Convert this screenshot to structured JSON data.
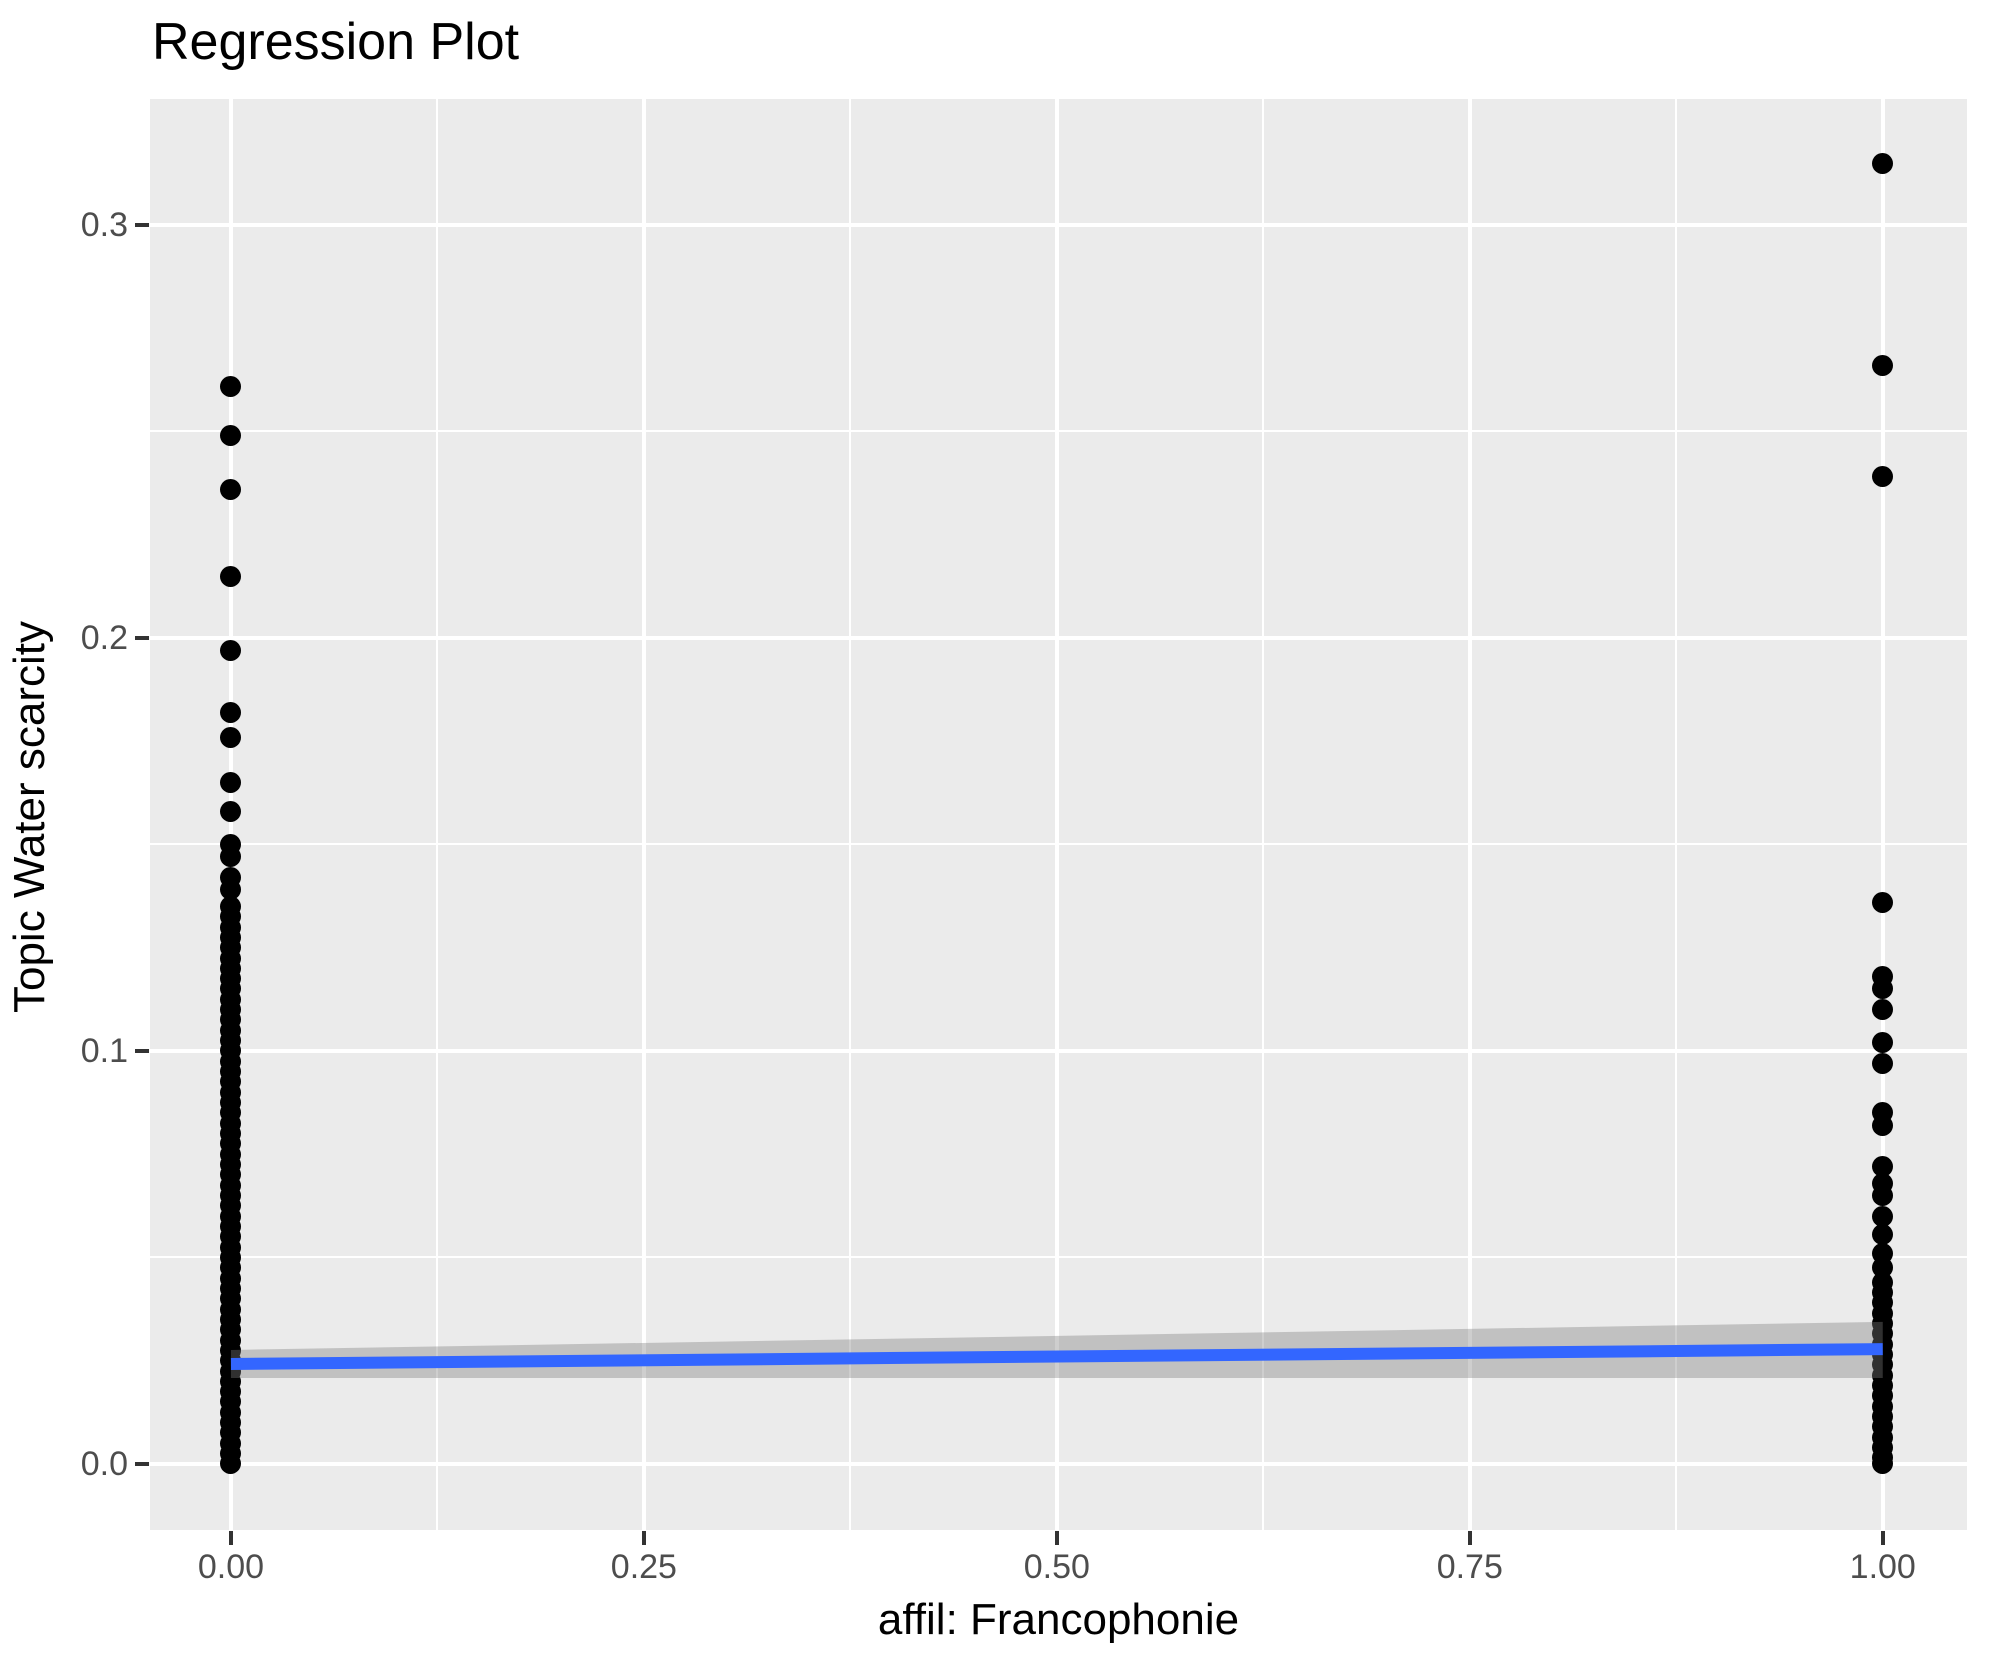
{
  "title": "Regression Plot",
  "chart_data": {
    "type": "scatter",
    "title": "Regression Plot",
    "xlabel": "affil: Francophonie",
    "ylabel": "Topic Water scarcity",
    "grid": true,
    "legend_position": "none",
    "xlim": [
      -0.049,
      1.051
    ],
    "ylim": [
      -0.016,
      0.3305
    ],
    "x_ticks": {
      "values": [
        0,
        0.25,
        0.5,
        0.75,
        1.0
      ],
      "labels": [
        "0.00",
        "0.25",
        "0.50",
        "0.75",
        "1.00"
      ]
    },
    "y_ticks": {
      "values": [
        0,
        0.1,
        0.2,
        0.3
      ],
      "labels": [
        "0.0",
        "0.1",
        "0.2",
        "0.3"
      ]
    },
    "x_minor_gridlines": [
      0.125,
      0.375,
      0.625,
      0.875
    ],
    "y_minor_gridlines": [
      0.05,
      0.15,
      0.25
    ],
    "series": [
      {
        "name": "observations",
        "type": "points",
        "color": "#000000",
        "groups": [
          {
            "x": 0,
            "y": [
              0.261,
              0.249,
              0.236,
              0.215,
              0.197,
              0.182,
              0.176,
              0.165,
              0.158,
              0.15,
              0.147,
              0.142,
              0.139,
              0.135,
              0.1325,
              0.13,
              0.1275,
              0.125,
              0.1225,
              0.12,
              0.1175,
              0.115,
              0.1125,
              0.11,
              0.1075,
              0.105,
              0.1025,
              0.1,
              0.0975,
              0.095,
              0.0925,
              0.09,
              0.0875,
              0.085,
              0.0825,
              0.08,
              0.0775,
              0.075,
              0.0725,
              0.07,
              0.0675,
              0.065,
              0.0625,
              0.06,
              0.0575,
              0.055,
              0.0525,
              0.05,
              0.0475,
              0.045,
              0.0425,
              0.04,
              0.0375,
              0.035,
              0.0325,
              0.03,
              0.0275,
              0.025,
              0.0225,
              0.02,
              0.0175,
              0.015,
              0.0125,
              0.01,
              0.0075,
              0.005,
              0.0025,
              0
            ]
          },
          {
            "x": 1,
            "y": [
              0.315,
              0.266,
              0.239,
              0.136,
              0.118,
              0.115,
              0.11,
              0.102,
              0.097,
              0.085,
              0.082,
              0.072,
              0.068,
              0.065,
              0.06,
              0.0555,
              0.051,
              0.0475,
              0.044,
              0.0415,
              0.039,
              0.0365,
              0.034,
              0.0315,
              0.029,
              0.0265,
              0.024,
              0.0215,
              0.019,
              0.0165,
              0.014,
              0.0115,
              0.009,
              0.0065,
              0.004,
              0.0015,
              0
            ]
          }
        ]
      },
      {
        "name": "regression-line",
        "type": "line",
        "color": "#3366FF",
        "points": [
          {
            "x": 0,
            "y": 0.0242
          },
          {
            "x": 1,
            "y": 0.0278
          }
        ]
      },
      {
        "name": "confidence-band",
        "type": "band",
        "color": "rgba(127,127,127,0.38)",
        "upper": [
          {
            "x": 0,
            "y": 0.0276
          },
          {
            "x": 1,
            "y": 0.0344
          }
        ],
        "lower": [
          {
            "x": 0,
            "y": 0.0208
          },
          {
            "x": 1,
            "y": 0.0208
          }
        ]
      }
    ],
    "colors": {
      "figure_background": "#FFFFFF",
      "panel_background": "#EBEBEB",
      "gridline": "#FFFFFF",
      "point": "#000000",
      "smooth_line": "#3366FF",
      "confidence_band": "rgba(127,127,127,0.38)",
      "axis_text": "#4D4D4D",
      "tick_mark": "#333333",
      "title_text": "#000000"
    }
  }
}
